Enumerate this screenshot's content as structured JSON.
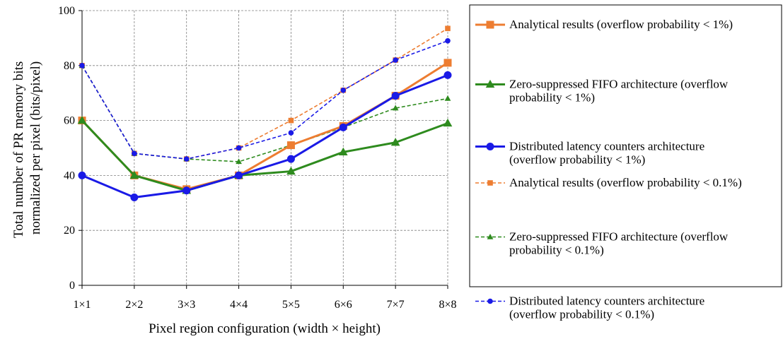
{
  "chart_data": {
    "type": "line",
    "xlabel": "Pixel region configuration (width × height)",
    "ylabel": [
      "Total number of PR memory bits",
      "normalized per pixel (bits/pixel)"
    ],
    "categories": [
      "1×1",
      "2×2",
      "3×3",
      "4×4",
      "5×5",
      "6×6",
      "7×7",
      "8×8"
    ],
    "ylim": [
      0,
      100
    ],
    "yticks": [
      0,
      20,
      40,
      60,
      80,
      100
    ],
    "grid": true,
    "legend_position": "right",
    "series": [
      {
        "name": "Analytical results (overflow probability < 1%)",
        "legend_lines": [
          "Analytical results (overflow probability < 1%)"
        ],
        "values": [
          60,
          40,
          35,
          40,
          51,
          58,
          69,
          81
        ],
        "color": "#ED7D31",
        "marker": "square",
        "style": "solid"
      },
      {
        "name": "Zero-suppressed FIFO architecture (overflow probability < 1%)",
        "legend_lines": [
          "Zero-suppressed FIFO architecture (overflow",
          "probability < 1%)"
        ],
        "values": [
          60,
          40,
          34.5,
          40,
          41.5,
          48.5,
          52,
          59
        ],
        "color": "#2E8B1E",
        "marker": "triangle",
        "style": "solid"
      },
      {
        "name": "Distributed latency counters architecture (overflow probability < 1%)",
        "legend_lines": [
          "Distributed latency counters architecture",
          "(overflow probability < 1%)"
        ],
        "values": [
          40,
          32,
          34.5,
          40,
          46,
          57.5,
          69,
          76.5
        ],
        "color": "#1A1AE6",
        "marker": "circle",
        "style": "solid"
      },
      {
        "name": "Analytical results (overflow probability < 0.1%)",
        "legend_lines": [
          "Analytical results (overflow probability < 0.1%)"
        ],
        "values": [
          80,
          48,
          46,
          50,
          60,
          71,
          82,
          93.5
        ],
        "color": "#ED7D31",
        "marker": "square",
        "style": "dashed"
      },
      {
        "name": "Zero-suppressed FIFO architecture (overflow probability < 0.1%)",
        "legend_lines": [
          "Zero-suppressed FIFO architecture (overflow",
          "probability < 0.1%)"
        ],
        "values": [
          80,
          48,
          46,
          45,
          51,
          57.5,
          64.5,
          68
        ],
        "color": "#2E8B1E",
        "marker": "triangle",
        "style": "dashed"
      },
      {
        "name": "Distributed latency counters architecture (overflow probability < 0.1%)",
        "legend_lines": [
          "Distributed latency counters architecture",
          "(overflow probability < 0.1%)"
        ],
        "values": [
          80,
          48,
          46,
          50,
          55.5,
          71,
          82,
          89
        ],
        "color": "#1A1AE6",
        "marker": "circle",
        "style": "dashed"
      }
    ]
  }
}
